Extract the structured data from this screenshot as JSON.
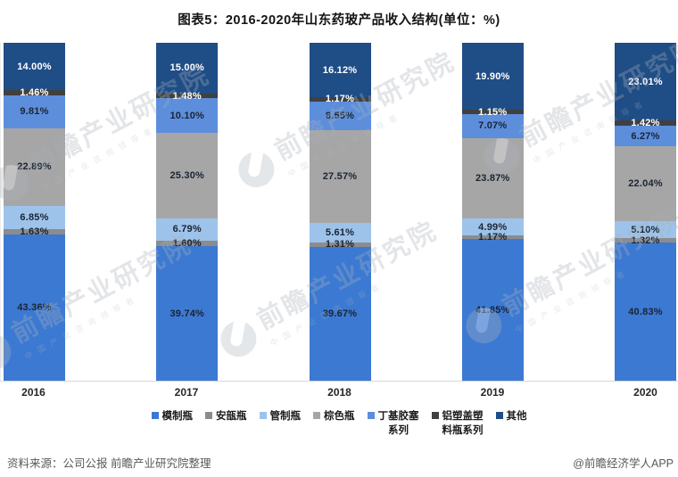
{
  "title": "图表5：2016-2020年山东药玻产品收入结构(单位：%)",
  "chart_data": {
    "type": "bar",
    "stacked": true,
    "unit": "%",
    "ylim": [
      0,
      100
    ],
    "grid": false,
    "legend_position": "bottom",
    "title": "图表5：2016-2020年山东药玻产品收入结构(单位：%)",
    "categories": [
      "2016",
      "2017",
      "2018",
      "2019",
      "2020"
    ],
    "series": [
      {
        "name": "模制瓶",
        "color": "#3C79D2",
        "label_color": "#1b2433",
        "legend_lines": [
          "模制瓶"
        ],
        "values": [
          43.36,
          39.74,
          39.67,
          41.85,
          40.83
        ]
      },
      {
        "name": "安瓿瓶",
        "color": "#8C8C8C",
        "label_color": "#1b2433",
        "legend_lines": [
          "安瓿瓶"
        ],
        "values": [
          1.63,
          1.6,
          1.31,
          1.17,
          1.32
        ]
      },
      {
        "name": "管制瓶",
        "color": "#9DC3EA",
        "label_color": "#1b2433",
        "legend_lines": [
          "管制瓶"
        ],
        "values": [
          6.85,
          6.79,
          5.61,
          4.99,
          5.1
        ]
      },
      {
        "name": "棕色瓶",
        "color": "#A6A6A6",
        "label_color": "#1b2433",
        "legend_lines": [
          "棕色瓶"
        ],
        "values": [
          22.89,
          25.3,
          27.57,
          23.87,
          22.04
        ]
      },
      {
        "name": "丁基胶塞系列",
        "color": "#5C8EDC",
        "label_color": "#1b2433",
        "legend_lines": [
          "丁基胶塞",
          "系列"
        ],
        "values": [
          9.81,
          10.1,
          8.55,
          7.07,
          6.27
        ]
      },
      {
        "name": "铝塑盖塑料瓶系列",
        "color": "#404040",
        "label_color": "#ffffff",
        "legend_lines": [
          "铝塑盖塑",
          "料瓶系列"
        ],
        "values": [
          1.46,
          1.48,
          1.17,
          1.15,
          1.42
        ]
      },
      {
        "name": "其他",
        "color": "#1F4D86",
        "label_color": "#ffffff",
        "legend_lines": [
          "其他"
        ],
        "values": [
          14.0,
          15.0,
          16.12,
          19.9,
          23.01
        ]
      }
    ]
  },
  "footer": {
    "source": "资料来源：公司公报 前瞻产业研究院整理",
    "credit": "@前瞻经济学人APP"
  },
  "watermark": {
    "logo_name": "qianzhan-logo",
    "text_big": "前瞻产业研究院",
    "text_small": "中国产业咨询领导者"
  }
}
